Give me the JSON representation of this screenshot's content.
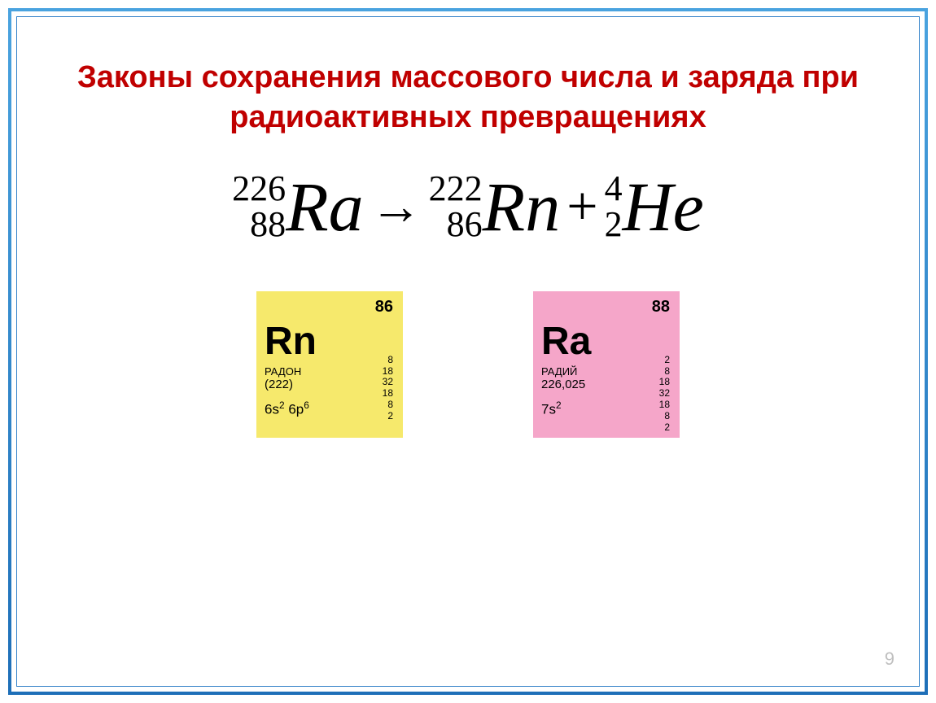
{
  "title": {
    "text": "Законы сохранения массового числа и заряда при радиоактивных превращениях",
    "color": "#c00000",
    "fontsize": 38
  },
  "equation": {
    "color": "#000000",
    "symbol_fontsize": 86,
    "index_fontsize": 44,
    "arrow_fontsize": 64,
    "plus_fontsize": 68,
    "terms": [
      {
        "mass": "226",
        "charge": "88",
        "symbol": "Ra"
      },
      {
        "mass": "222",
        "charge": "86",
        "symbol": "Rn"
      },
      {
        "mass": "4",
        "charge": "2",
        "symbol": "He"
      }
    ],
    "arrow": "→",
    "plus": "+"
  },
  "tiles": [
    {
      "bg": "#f6e96c",
      "atomic_number": "86",
      "symbol": "Rn",
      "name": "РАДОН",
      "mass": "(222)",
      "econf_html": "6s<sup>2</sup> 6p<sup>6</sup>",
      "shells": [
        "8",
        "18",
        "32",
        "18",
        "8",
        "2"
      ],
      "atomic_number_fontsize": 20,
      "symbol_fontsize": 48,
      "name_fontsize": 13,
      "mass_fontsize": 15,
      "econf_fontsize": 17,
      "shell_fontsize": 12
    },
    {
      "bg": "#f5a6c9",
      "atomic_number": "88",
      "symbol": "Ra",
      "name": "РАДИЙ",
      "mass": "226,025",
      "econf_html": "7s<sup>2</sup>",
      "shells": [
        "2",
        "8",
        "18",
        "32",
        "18",
        "8",
        "2"
      ],
      "atomic_number_fontsize": 20,
      "symbol_fontsize": 48,
      "name_fontsize": 13,
      "mass_fontsize": 15,
      "econf_fontsize": 17,
      "shell_fontsize": 12
    }
  ],
  "pagenum": {
    "text": "9",
    "color": "#bfbfbf",
    "fontsize": 22
  }
}
